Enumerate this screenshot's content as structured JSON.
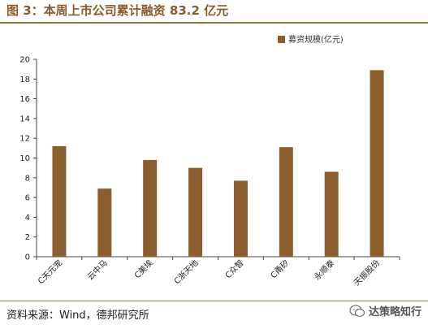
{
  "header": {
    "title": "图 3：本周上市公司累计融资 83.2 亿元"
  },
  "footer": {
    "source": "资料来源：Wind，德邦研究所",
    "watermark": "达策略知行"
  },
  "chart_data": {
    "type": "bar",
    "categories": [
      "C天元宠",
      "云中马",
      "C美埃",
      "C浙天地",
      "C众智",
      "C甬矽",
      "永顺泰",
      "天振股份"
    ],
    "series": [
      {
        "name": "募资规模(亿元)",
        "values": [
          11.2,
          6.9,
          9.8,
          9.0,
          7.7,
          11.1,
          8.6,
          18.9
        ],
        "color": "#8b5e2e"
      }
    ],
    "ylim": [
      0,
      20
    ],
    "yticks": [
      0,
      2,
      4,
      6,
      8,
      10,
      12,
      14,
      16,
      18,
      20
    ],
    "legend_position": "top-right",
    "grid": false
  }
}
